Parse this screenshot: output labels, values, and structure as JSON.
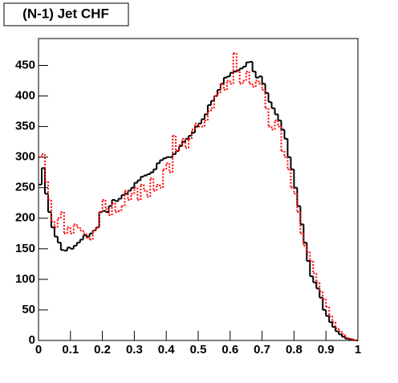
{
  "chart_data": {
    "type": "histogram",
    "title": "(N-1) Jet CHF",
    "bins": [
      0,
      0.01,
      0.02,
      0.03,
      0.04,
      0.05,
      0.06,
      0.07,
      0.08,
      0.09,
      0.1,
      0.11,
      0.12,
      0.13,
      0.14,
      0.15,
      0.16,
      0.17,
      0.18,
      0.19,
      0.2,
      0.21,
      0.22,
      0.23,
      0.24,
      0.25,
      0.26,
      0.27,
      0.28,
      0.29,
      0.3,
      0.31,
      0.32,
      0.33,
      0.34,
      0.35,
      0.36,
      0.37,
      0.38,
      0.39,
      0.4,
      0.41,
      0.42,
      0.43,
      0.44,
      0.45,
      0.46,
      0.47,
      0.48,
      0.49,
      0.5,
      0.51,
      0.52,
      0.53,
      0.54,
      0.55,
      0.56,
      0.57,
      0.58,
      0.59,
      0.6,
      0.61,
      0.62,
      0.63,
      0.64,
      0.65,
      0.66,
      0.67,
      0.68,
      0.69,
      0.7,
      0.71,
      0.72,
      0.73,
      0.74,
      0.75,
      0.76,
      0.77,
      0.78,
      0.79,
      0.8,
      0.81,
      0.82,
      0.83,
      0.84,
      0.85,
      0.86,
      0.87,
      0.88,
      0.89,
      0.9,
      0.91,
      0.92,
      0.93,
      0.94,
      0.95,
      0.96,
      0.97,
      0.98,
      0.99,
      1
    ],
    "series": [
      {
        "color": "#000000",
        "style": "solid",
        "values": [
          255,
          282,
          240,
          210,
          185,
          170,
          160,
          148,
          147,
          152,
          150,
          155,
          160,
          165,
          172,
          170,
          175,
          180,
          185,
          210,
          212,
          210,
          220,
          230,
          228,
          232,
          238,
          240,
          245,
          250,
          258,
          262,
          268,
          270,
          272,
          275,
          280,
          290,
          295,
          298,
          300,
          300,
          305,
          310,
          318,
          325,
          330,
          335,
          340,
          350,
          355,
          362,
          370,
          385,
          392,
          400,
          410,
          420,
          430,
          432,
          438,
          440,
          442,
          445,
          448,
          455,
          456,
          440,
          430,
          432,
          420,
          405,
          390,
          380,
          370,
          360,
          345,
          330,
          300,
          280,
          250,
          220,
          190,
          160,
          130,
          105,
          95,
          85,
          70,
          50,
          40,
          30,
          22,
          15,
          10,
          6,
          3,
          2,
          1,
          0
        ]
      },
      {
        "color": "#ff0000",
        "style": "dotted",
        "values": [
          300,
          305,
          260,
          230,
          195,
          185,
          200,
          210,
          175,
          185,
          175,
          190,
          185,
          180,
          175,
          168,
          165,
          180,
          185,
          210,
          230,
          215,
          205,
          225,
          210,
          212,
          220,
          245,
          230,
          240,
          250,
          230,
          255,
          245,
          235,
          265,
          245,
          255,
          250,
          280,
          290,
          275,
          335,
          310,
          320,
          330,
          315,
          330,
          345,
          355,
          350,
          350,
          360,
          375,
          380,
          400,
          405,
          420,
          410,
          425,
          420,
          470,
          440,
          420,
          425,
          440,
          420,
          415,
          425,
          420,
          410,
          380,
          350,
          345,
          360,
          350,
          310,
          300,
          280,
          250,
          240,
          210,
          175,
          155,
          145,
          130,
          110,
          95,
          80,
          68,
          55,
          40,
          30,
          20,
          15,
          10,
          5,
          3,
          2,
          0
        ]
      }
    ],
    "xlim": [
      0,
      1
    ],
    "ylim": [
      0,
      494
    ],
    "xticks": [
      0,
      0.1,
      0.2,
      0.3,
      0.4,
      0.5,
      0.6,
      0.7,
      0.8,
      0.9,
      1
    ],
    "yticks": [
      0,
      50,
      100,
      150,
      200,
      250,
      300,
      350,
      400,
      450
    ]
  }
}
